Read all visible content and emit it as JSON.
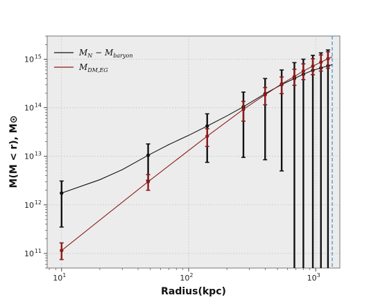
{
  "chart_data": {
    "type": "line",
    "xlabel": "Radius(kpc)",
    "ylabel": "M(M < r), M⊙",
    "xscale": "log",
    "yscale": "log",
    "xlim": [
      7.7,
      1550
    ],
    "ylim": [
      50000000000.0,
      3000000000000000.0
    ],
    "grid": true,
    "legend": "top-left",
    "vline_x": 1350,
    "vline_color": "#3a8fd0",
    "x_ticks": [
      {
        "value": 10,
        "base": "10",
        "exp": "1"
      },
      {
        "value": 100,
        "base": "10",
        "exp": "2"
      },
      {
        "value": 1000,
        "base": "10",
        "exp": "3"
      }
    ],
    "y_ticks": [
      {
        "value": 100000000000.0,
        "base": "10",
        "exp": "11"
      },
      {
        "value": 1000000000000.0,
        "base": "10",
        "exp": "12"
      },
      {
        "value": 10000000000000.0,
        "base": "10",
        "exp": "13"
      },
      {
        "value": 100000000000000.0,
        "base": "10",
        "exp": "14"
      },
      {
        "value": 1000000000000000.0,
        "base": "10",
        "exp": "15"
      }
    ],
    "series": [
      {
        "name": "M_N − M_baryon",
        "legend_main": "M",
        "legend_sub1": "N",
        "legend_mid": " − M",
        "legend_sub2": "baryon",
        "color": "#111111",
        "line_x": [
          10,
          20,
          30,
          48,
          70,
          100,
          140,
          200,
          270,
          400,
          540,
          680,
          800,
          950,
          1100,
          1250,
          1350
        ],
        "line_y": [
          1750000000000.0,
          3300000000000.0,
          5300000000000.0,
          10500000000000.0,
          17500000000000.0,
          27000000000000.0,
          42000000000000.0,
          68000000000000.0,
          105000000000000.0,
          195000000000000.0,
          300000000000000.0,
          400000000000000.0,
          490000000000000.0,
          590000000000000.0,
          660000000000000.0,
          730000000000000.0,
          770000000000000.0
        ],
        "points": [
          {
            "x": 10,
            "y": 1750000000000.0,
            "lo": 350000000000.0,
            "hi": 3100000000000.0
          },
          {
            "x": 48,
            "y": 10500000000000.0,
            "lo": 3200000000000.0,
            "hi": 18000000000000.0
          },
          {
            "x": 140,
            "y": 42000000000000.0,
            "lo": 7500000000000.0,
            "hi": 75000000000000.0
          },
          {
            "x": 270,
            "y": 105000000000000.0,
            "lo": 9500000000000.0,
            "hi": 210000000000000.0
          },
          {
            "x": 400,
            "y": 195000000000000.0,
            "lo": 8500000000000.0,
            "hi": 400000000000000.0
          },
          {
            "x": 540,
            "y": 300000000000000.0,
            "lo": 5000000000000.0,
            "hi": 600000000000000.0
          },
          {
            "x": 680,
            "y": 400000000000000.0,
            "lo": 10000000000.0,
            "hi": 850000000000000.0
          },
          {
            "x": 800,
            "y": 490000000000000.0,
            "lo": 10000000000.0,
            "hi": 1000000000000000.0
          },
          {
            "x": 950,
            "y": 590000000000000.0,
            "lo": 10000000000.0,
            "hi": 1200000000000000.0
          },
          {
            "x": 1100,
            "y": 660000000000000.0,
            "lo": 10000000000.0,
            "hi": 1350000000000000.0
          },
          {
            "x": 1250,
            "y": 730000000000000.0,
            "lo": 10000000000.0,
            "hi": 1550000000000000.0
          }
        ]
      },
      {
        "name": "M_DM,EG",
        "legend_main": "M",
        "legend_sub1": "DM,EG",
        "legend_mid": "",
        "legend_sub2": "",
        "color": "#8b1a1a",
        "line_x": [
          10,
          48,
          140,
          270,
          400,
          540,
          680,
          800,
          950,
          1100,
          1250,
          1350
        ],
        "line_y": [
          115000000000.0,
          3000000000000.0,
          26000000000000.0,
          93000000000000.0,
          185000000000000.0,
          310000000000000.0,
          440000000000000.0,
          570000000000000.0,
          720000000000000.0,
          870000000000000.0,
          1020000000000000.0,
          1120000000000000.0
        ],
        "points": [
          {
            "x": 10,
            "y": 115000000000.0,
            "lo": 75000000000.0,
            "hi": 165000000000.0
          },
          {
            "x": 48,
            "y": 3000000000000.0,
            "lo": 2000000000000.0,
            "hi": 4200000000000.0
          },
          {
            "x": 140,
            "y": 26000000000000.0,
            "lo": 16000000000000.0,
            "hi": 37000000000000.0
          },
          {
            "x": 270,
            "y": 93000000000000.0,
            "lo": 53000000000000.0,
            "hi": 135000000000000.0
          },
          {
            "x": 400,
            "y": 185000000000000.0,
            "lo": 115000000000000.0,
            "hi": 260000000000000.0
          },
          {
            "x": 540,
            "y": 310000000000000.0,
            "lo": 195000000000000.0,
            "hi": 430000000000000.0
          },
          {
            "x": 680,
            "y": 440000000000000.0,
            "lo": 290000000000000.0,
            "hi": 620000000000000.0
          },
          {
            "x": 800,
            "y": 570000000000000.0,
            "lo": 380000000000000.0,
            "hi": 800000000000000.0
          },
          {
            "x": 950,
            "y": 720000000000000.0,
            "lo": 480000000000000.0,
            "hi": 1020000000000000.0
          },
          {
            "x": 1100,
            "y": 870000000000000.0,
            "lo": 570000000000000.0,
            "hi": 1220000000000000.0
          },
          {
            "x": 1250,
            "y": 1020000000000000.0,
            "lo": 650000000000000.0,
            "hi": 1420000000000000.0
          }
        ]
      }
    ]
  }
}
